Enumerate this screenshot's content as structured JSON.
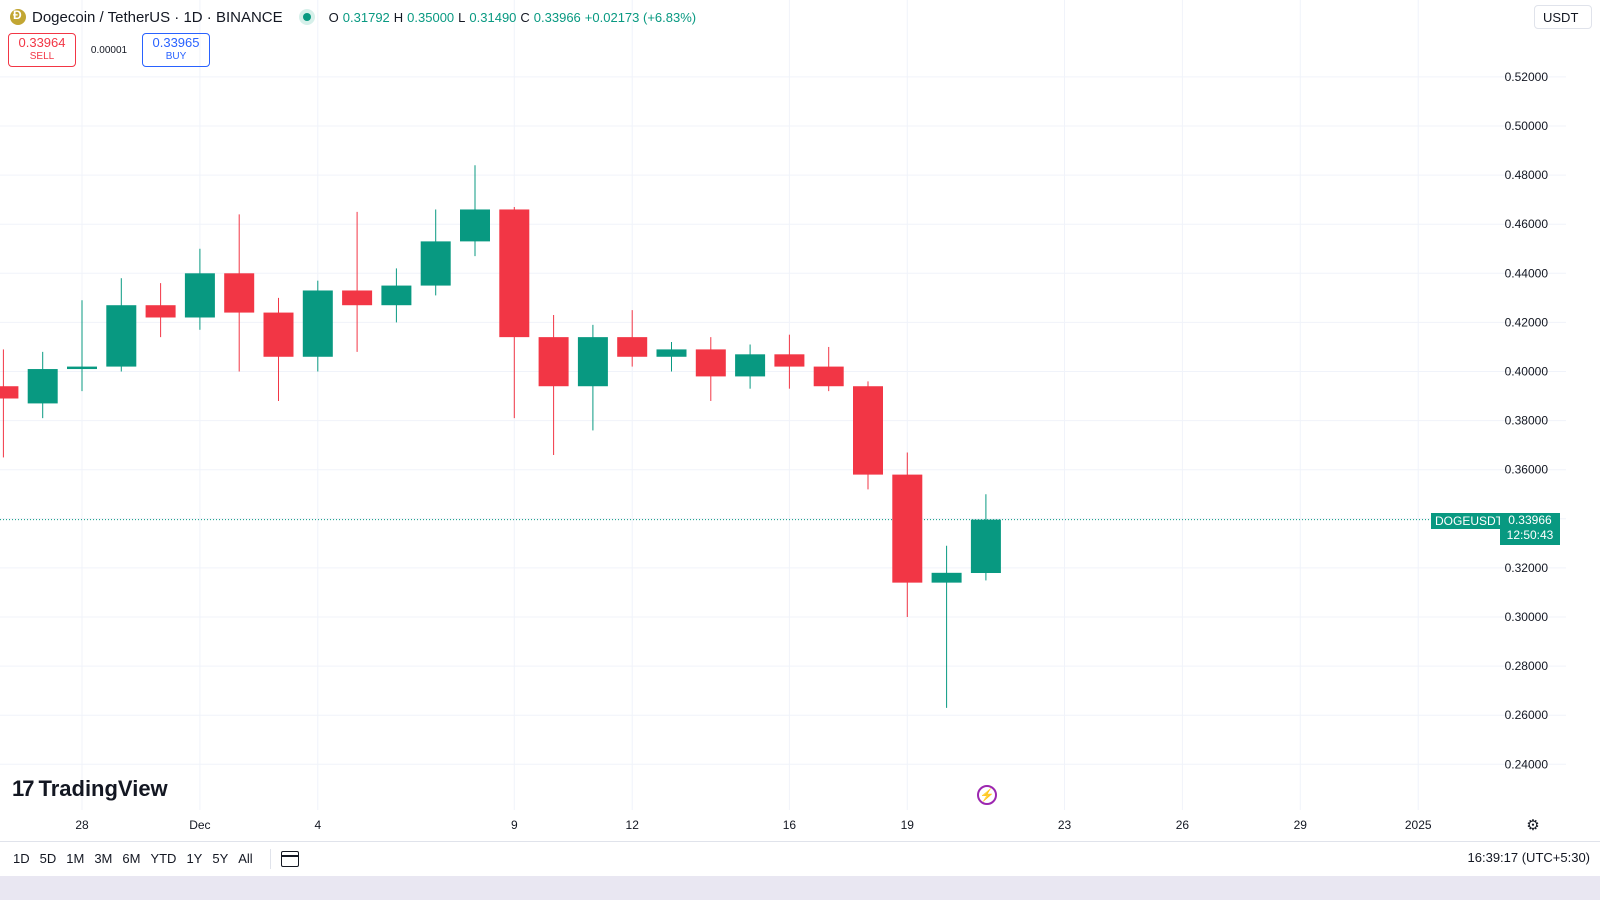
{
  "header": {
    "symbol_title": "Dogecoin / TetherUS · 1D · BINANCE",
    "ohlc": {
      "o_label": "O",
      "o": "0.31792",
      "h_label": "H",
      "h": "0.35000",
      "l_label": "L",
      "l": "0.31490",
      "c_label": "C",
      "c": "0.33966",
      "change": "+0.02173 (+6.83%)"
    },
    "currency": "USDT"
  },
  "trade": {
    "sell_price": "0.33964",
    "sell_label": "SELL",
    "spread": "0.00001",
    "buy_price": "0.33965",
    "buy_label": "BUY"
  },
  "branding": {
    "logo_mark": "17",
    "logo_text": "TradingView"
  },
  "last_price": {
    "symbol": "DOGEUSDT",
    "price": "0.33966",
    "countdown": "12:50:43"
  },
  "bottom_bar": {
    "ranges": [
      "1D",
      "5D",
      "1M",
      "3M",
      "6M",
      "YTD",
      "1Y",
      "5Y",
      "All"
    ],
    "clock": "16:39:17 (UTC+5:30)"
  },
  "colors": {
    "up": "#089981",
    "down": "#f23645",
    "grid": "#f0f3fa",
    "accent": "#2962ff"
  },
  "chart_data": {
    "type": "candlestick",
    "title": "Dogecoin / TetherUS · 1D · BINANCE",
    "y_range": [
      0.23,
      0.54
    ],
    "y_ticks": [
      0.52,
      0.5,
      0.48,
      0.46,
      0.44,
      0.42,
      0.4,
      0.38,
      0.36,
      0.34,
      0.32,
      0.3,
      0.28,
      0.26,
      0.24
    ],
    "y_tick_labels": [
      "0.52000",
      "0.50000",
      "0.48000",
      "0.46000",
      "0.44000",
      "0.42000",
      "0.40000",
      "0.38000",
      "0.36000",
      "",
      "0.32000",
      "0.30000",
      "0.28000",
      "0.26000",
      "0.24000"
    ],
    "x_tick_labels": [
      {
        "day": 0,
        "label": "28"
      },
      {
        "day": 3,
        "label": "Dec"
      },
      {
        "day": 6,
        "label": "4"
      },
      {
        "day": 11,
        "label": "9"
      },
      {
        "day": 14,
        "label": "12"
      },
      {
        "day": 18,
        "label": "16"
      },
      {
        "day": 21,
        "label": "19"
      },
      {
        "day": 25,
        "label": "23"
      },
      {
        "day": 28,
        "label": "26"
      },
      {
        "day": 31,
        "label": "29"
      },
      {
        "day": 34,
        "label": "2025"
      }
    ],
    "candles": [
      {
        "day": -2,
        "date": "Nov 26",
        "o": 0.394,
        "h": 0.409,
        "l": 0.365,
        "c": 0.389
      },
      {
        "day": -1,
        "date": "Nov 27",
        "o": 0.387,
        "h": 0.408,
        "l": 0.381,
        "c": 0.401
      },
      {
        "day": 0,
        "date": "Nov 28",
        "o": 0.401,
        "h": 0.429,
        "l": 0.392,
        "c": 0.402
      },
      {
        "day": 1,
        "date": "Nov 29",
        "o": 0.402,
        "h": 0.438,
        "l": 0.4,
        "c": 0.427
      },
      {
        "day": 2,
        "date": "Nov 30",
        "o": 0.427,
        "h": 0.436,
        "l": 0.414,
        "c": 0.422
      },
      {
        "day": 3,
        "date": "Dec 1",
        "o": 0.422,
        "h": 0.45,
        "l": 0.417,
        "c": 0.44
      },
      {
        "day": 4,
        "date": "Dec 2",
        "o": 0.44,
        "h": 0.464,
        "l": 0.4,
        "c": 0.424
      },
      {
        "day": 5,
        "date": "Dec 3",
        "o": 0.424,
        "h": 0.43,
        "l": 0.388,
        "c": 0.406
      },
      {
        "day": 6,
        "date": "Dec 4",
        "o": 0.406,
        "h": 0.437,
        "l": 0.4,
        "c": 0.433
      },
      {
        "day": 7,
        "date": "Dec 5",
        "o": 0.433,
        "h": 0.465,
        "l": 0.408,
        "c": 0.427
      },
      {
        "day": 8,
        "date": "Dec 6",
        "o": 0.427,
        "h": 0.442,
        "l": 0.42,
        "c": 0.435
      },
      {
        "day": 9,
        "date": "Dec 7",
        "o": 0.435,
        "h": 0.466,
        "l": 0.431,
        "c": 0.453
      },
      {
        "day": 10,
        "date": "Dec 8",
        "o": 0.453,
        "h": 0.484,
        "l": 0.447,
        "c": 0.466
      },
      {
        "day": 11,
        "date": "Dec 9",
        "o": 0.466,
        "h": 0.467,
        "l": 0.381,
        "c": 0.414
      },
      {
        "day": 12,
        "date": "Dec 10",
        "o": 0.414,
        "h": 0.423,
        "l": 0.366,
        "c": 0.394
      },
      {
        "day": 13,
        "date": "Dec 11",
        "o": 0.394,
        "h": 0.419,
        "l": 0.376,
        "c": 0.414
      },
      {
        "day": 14,
        "date": "Dec 12",
        "o": 0.414,
        "h": 0.425,
        "l": 0.402,
        "c": 0.406
      },
      {
        "day": 15,
        "date": "Dec 13",
        "o": 0.406,
        "h": 0.412,
        "l": 0.4,
        "c": 0.409
      },
      {
        "day": 16,
        "date": "Dec 14",
        "o": 0.409,
        "h": 0.414,
        "l": 0.388,
        "c": 0.398
      },
      {
        "day": 17,
        "date": "Dec 15",
        "o": 0.398,
        "h": 0.411,
        "l": 0.393,
        "c": 0.407
      },
      {
        "day": 18,
        "date": "Dec 16",
        "o": 0.407,
        "h": 0.415,
        "l": 0.393,
        "c": 0.402
      },
      {
        "day": 19,
        "date": "Dec 17",
        "o": 0.402,
        "h": 0.41,
        "l": 0.392,
        "c": 0.394
      },
      {
        "day": 20,
        "date": "Dec 18",
        "o": 0.394,
        "h": 0.396,
        "l": 0.352,
        "c": 0.358
      },
      {
        "day": 21,
        "date": "Dec 19",
        "o": 0.358,
        "h": 0.367,
        "l": 0.3,
        "c": 0.314
      },
      {
        "day": 22,
        "date": "Dec 20",
        "o": 0.314,
        "h": 0.329,
        "l": 0.263,
        "c": 0.318
      },
      {
        "day": 23,
        "date": "Dec 21",
        "o": 0.31792,
        "h": 0.35,
        "l": 0.3149,
        "c": 0.33966
      }
    ],
    "last_price": 0.33966,
    "grid": true,
    "axis_side": "right"
  }
}
